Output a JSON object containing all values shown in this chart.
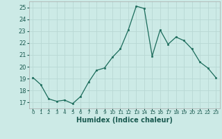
{
  "x": [
    0,
    1,
    2,
    3,
    4,
    5,
    6,
    7,
    8,
    9,
    10,
    11,
    12,
    13,
    14,
    15,
    16,
    17,
    18,
    19,
    20,
    21,
    22,
    23
  ],
  "y": [
    19.1,
    18.5,
    17.3,
    17.1,
    17.2,
    16.9,
    17.5,
    18.7,
    19.7,
    19.9,
    20.8,
    21.5,
    23.1,
    25.1,
    24.9,
    20.9,
    23.1,
    21.9,
    22.5,
    22.2,
    21.5,
    20.4,
    19.9,
    19.1
  ],
  "xlabel": "Humidex (Indice chaleur)",
  "xlim": [
    -0.5,
    23.5
  ],
  "ylim": [
    16.5,
    25.5
  ],
  "yticks": [
    17,
    18,
    19,
    20,
    21,
    22,
    23,
    24,
    25
  ],
  "xtick_labels": [
    "0",
    "1",
    "2",
    "3",
    "4",
    "5",
    "6",
    "7",
    "8",
    "9",
    "10",
    "11",
    "12",
    "13",
    "14",
    "15",
    "16",
    "17",
    "18",
    "19",
    "20",
    "21",
    "22",
    "23"
  ],
  "line_color": "#1a6b5a",
  "marker_color": "#1a6b5a",
  "bg_color": "#cceae6",
  "grid_color": "#b8d8d4"
}
